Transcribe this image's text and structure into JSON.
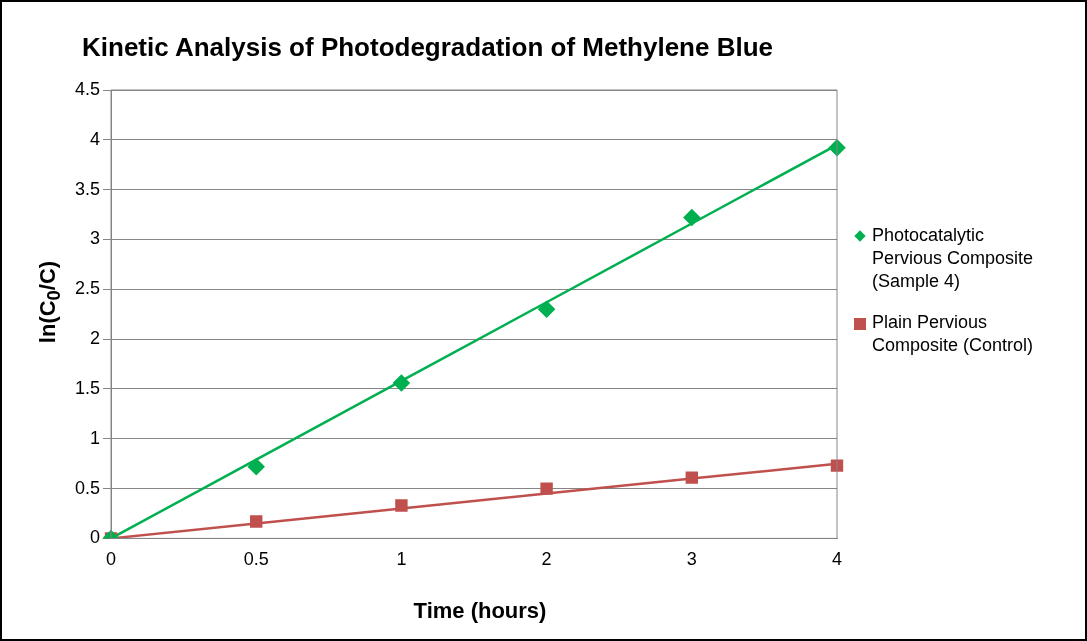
{
  "chart_data": {
    "type": "line",
    "title": "Kinetic Analysis of Photodegradation of Methylene Blue",
    "xlabel": "Time (hours)",
    "ylabel": "ln(C$_{0}$/C)",
    "categories": [
      "0",
      "0.5",
      "1",
      "2",
      "3",
      "4"
    ],
    "series": [
      {
        "name": "Photocatalytic Pervious Composite (Sample 4)",
        "type": "scatter",
        "marker": "diamond",
        "color": "#00b050",
        "values": [
          0,
          0.72,
          1.56,
          2.3,
          3.22,
          3.92
        ]
      },
      {
        "name": "Plain Pervious Composite (Control)",
        "type": "scatter",
        "marker": "square",
        "color": "#c0504d",
        "values": [
          0,
          0.17,
          0.33,
          0.5,
          0.61,
          0.73
        ]
      },
      {
        "type": "line",
        "marker": "none",
        "color": "#00b050",
        "values": [
          0,
          0.79,
          1.58,
          2.37,
          3.16,
          3.95
        ]
      },
      {
        "type": "line",
        "marker": "none",
        "color": "#c0504d",
        "values": [
          0,
          0.15,
          0.3,
          0.45,
          0.6,
          0.75
        ]
      }
    ],
    "ylim": [
      0,
      4.5
    ],
    "yticks": [
      0,
      0.5,
      1,
      1.5,
      2,
      2.5,
      3,
      3.5,
      4,
      4.5
    ],
    "grid": "y",
    "legend": "right"
  }
}
